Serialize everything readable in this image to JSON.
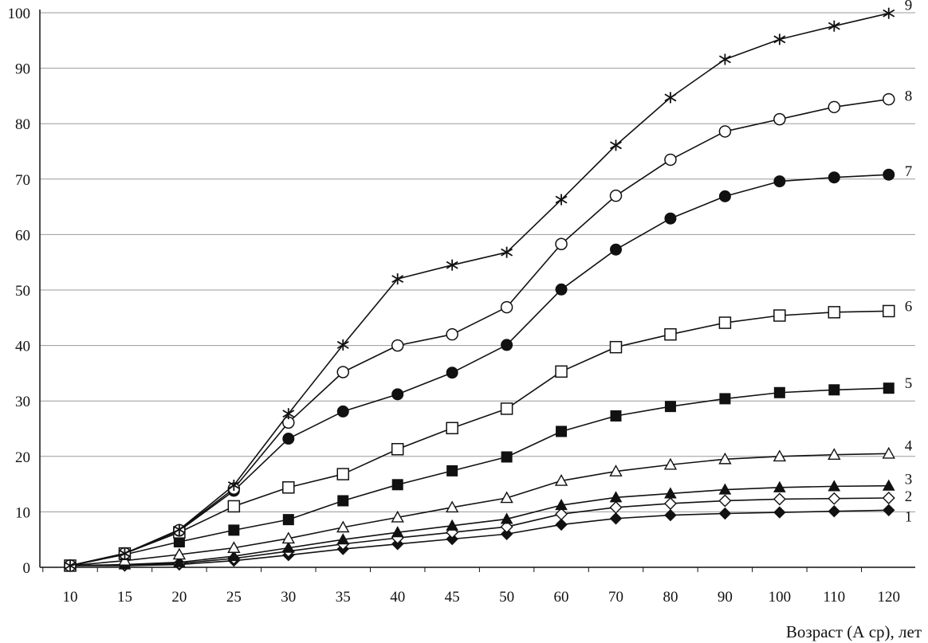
{
  "chart_data": {
    "type": "line",
    "title": "",
    "xlabel": "Возраст (А ср), лет",
    "ylabel": "",
    "categories": [
      "10",
      "15",
      "20",
      "25",
      "30",
      "35",
      "40",
      "45",
      "50",
      "60",
      "70",
      "80",
      "90",
      "100",
      "110",
      "120"
    ],
    "yticks": [
      "0",
      "10",
      "20",
      "30",
      "40",
      "50",
      "60",
      "70",
      "80",
      "90",
      "100"
    ],
    "ylim": [
      0,
      100
    ],
    "grid": "horizontal",
    "legend": "none",
    "series": [
      {
        "name": "1",
        "marker": "diamond-filled",
        "values": [
          0.3,
          0.3,
          0.5,
          1.2,
          2.2,
          3.3,
          4.2,
          5.1,
          6.0,
          7.7,
          8.8,
          9.4,
          9.7,
          9.9,
          10.1,
          10.3
        ]
      },
      {
        "name": "2",
        "marker": "diamond-open",
        "values": [
          0.3,
          0.4,
          0.7,
          1.6,
          2.9,
          4.2,
          5.3,
          6.3,
          7.3,
          9.6,
          10.8,
          11.5,
          12.0,
          12.3,
          12.4,
          12.5
        ]
      },
      {
        "name": "3",
        "marker": "triangle-filled",
        "values": [
          0.3,
          0.5,
          0.9,
          2.0,
          3.5,
          5.0,
          6.3,
          7.5,
          8.7,
          11.2,
          12.6,
          13.3,
          14.0,
          14.4,
          14.6,
          14.7
        ]
      },
      {
        "name": "4",
        "marker": "triangle-open",
        "values": [
          0.3,
          1.2,
          2.3,
          3.5,
          5.2,
          7.2,
          9.0,
          10.8,
          12.5,
          15.6,
          17.3,
          18.5,
          19.5,
          20.0,
          20.3,
          20.5
        ]
      },
      {
        "name": "5",
        "marker": "square-filled",
        "values": [
          0.3,
          2.3,
          4.6,
          6.7,
          8.6,
          12.0,
          14.9,
          17.4,
          19.9,
          24.5,
          27.3,
          29.0,
          30.4,
          31.5,
          32.0,
          32.3
        ]
      },
      {
        "name": "6",
        "marker": "square-open",
        "values": [
          0.3,
          2.5,
          6.3,
          11.0,
          14.4,
          16.8,
          21.3,
          25.1,
          28.6,
          35.3,
          39.7,
          42.0,
          44.1,
          45.4,
          46.0,
          46.2
        ]
      },
      {
        "name": "7",
        "marker": "circle-filled",
        "values": [
          0.3,
          2.5,
          6.6,
          13.8,
          23.2,
          28.1,
          31.2,
          35.1,
          40.1,
          50.1,
          57.3,
          62.9,
          66.9,
          69.6,
          70.3,
          70.8
        ]
      },
      {
        "name": "8",
        "marker": "circle-open",
        "values": [
          0.3,
          2.5,
          6.7,
          14.2,
          26.1,
          35.2,
          40.0,
          42.0,
          46.9,
          58.3,
          67.0,
          73.5,
          78.6,
          80.8,
          83.0,
          84.4
        ]
      },
      {
        "name": "9",
        "marker": "asterisk",
        "values": [
          0.3,
          2.5,
          6.8,
          14.8,
          27.7,
          40.1,
          52.0,
          54.5,
          56.8,
          66.3,
          76.1,
          84.7,
          91.6,
          95.2,
          97.6,
          99.9
        ]
      }
    ]
  },
  "colors": {
    "line": "#111111",
    "grid": "#9a9a9a",
    "background": "#ffffff"
  }
}
